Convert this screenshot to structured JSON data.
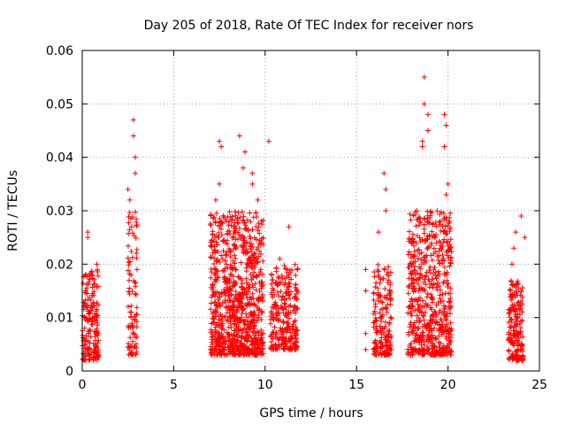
{
  "chart_data": {
    "type": "scatter",
    "title": "Day 205 of 2018, Rate Of TEC Index for receiver nors",
    "xlabel": "GPS time / hours",
    "ylabel": "ROTI / TECUs",
    "xlim": [
      0,
      25
    ],
    "ylim": [
      0,
      0.06
    ],
    "xticks": [
      "0",
      "5",
      "10",
      "15",
      "20",
      "25"
    ],
    "yticks": [
      "0",
      "0.01",
      "0.02",
      "0.03",
      "0.04",
      "0.05",
      "0.06"
    ],
    "grid": true,
    "marker": "+",
    "color": "#ff0000",
    "clusters": [
      {
        "x_range": [
          0.0,
          0.9
        ],
        "y_range": [
          0.002,
          0.019
        ],
        "count": 180
      },
      {
        "x_range": [
          2.5,
          3.0
        ],
        "y_range": [
          0.003,
          0.03
        ],
        "count": 90
      },
      {
        "x_range": [
          7.0,
          9.9
        ],
        "y_range": [
          0.003,
          0.03
        ],
        "count": 900
      },
      {
        "x_range": [
          10.3,
          11.8
        ],
        "y_range": [
          0.004,
          0.02
        ],
        "count": 260
      },
      {
        "x_range": [
          15.9,
          16.9
        ],
        "y_range": [
          0.003,
          0.02
        ],
        "count": 180
      },
      {
        "x_range": [
          17.8,
          20.2
        ],
        "y_range": [
          0.003,
          0.03
        ],
        "count": 600
      },
      {
        "x_range": [
          23.3,
          24.1
        ],
        "y_range": [
          0.002,
          0.017
        ],
        "count": 180
      }
    ],
    "highlights": [
      [
        0.3,
        0.026
      ],
      [
        0.3,
        0.025
      ],
      [
        0.5,
        0.018
      ],
      [
        0.8,
        0.02
      ],
      [
        2.5,
        0.034
      ],
      [
        2.6,
        0.032
      ],
      [
        2.8,
        0.047
      ],
      [
        2.8,
        0.044
      ],
      [
        2.9,
        0.04
      ],
      [
        2.9,
        0.037
      ],
      [
        2.7,
        0.027
      ],
      [
        7.5,
        0.043
      ],
      [
        7.6,
        0.042
      ],
      [
        7.5,
        0.035
      ],
      [
        7.3,
        0.032
      ],
      [
        8.6,
        0.044
      ],
      [
        8.8,
        0.038
      ],
      [
        8.9,
        0.041
      ],
      [
        9.3,
        0.037
      ],
      [
        9.3,
        0.035
      ],
      [
        9.6,
        0.032
      ],
      [
        10.2,
        0.043
      ],
      [
        9.5,
        0.027
      ],
      [
        11.3,
        0.027
      ],
      [
        10.8,
        0.021
      ],
      [
        15.5,
        0.019
      ],
      [
        15.5,
        0.015
      ],
      [
        15.5,
        0.007
      ],
      [
        15.5,
        0.004
      ],
      [
        16.2,
        0.026
      ],
      [
        16.5,
        0.037
      ],
      [
        16.6,
        0.034
      ],
      [
        16.6,
        0.03
      ],
      [
        18.3,
        0.03
      ],
      [
        18.6,
        0.042
      ],
      [
        18.6,
        0.043
      ],
      [
        18.7,
        0.055
      ],
      [
        18.7,
        0.05
      ],
      [
        18.9,
        0.045
      ],
      [
        18.9,
        0.048
      ],
      [
        19.8,
        0.048
      ],
      [
        19.9,
        0.046
      ],
      [
        19.8,
        0.042
      ],
      [
        20.0,
        0.035
      ],
      [
        19.9,
        0.033
      ],
      [
        23.7,
        0.026
      ],
      [
        24.0,
        0.029
      ],
      [
        23.6,
        0.023
      ],
      [
        24.2,
        0.025
      ],
      [
        23.5,
        0.02
      ]
    ]
  }
}
